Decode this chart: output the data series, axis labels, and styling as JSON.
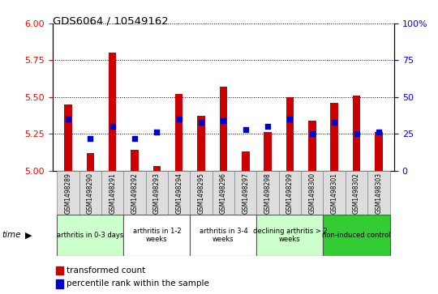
{
  "title": "GDS6064 / 10549162",
  "samples": [
    "GSM1498289",
    "GSM1498290",
    "GSM1498291",
    "GSM1498292",
    "GSM1498293",
    "GSM1498294",
    "GSM1498295",
    "GSM1498296",
    "GSM1498297",
    "GSM1498298",
    "GSM1498299",
    "GSM1498300",
    "GSM1498301",
    "GSM1498302",
    "GSM1498303"
  ],
  "red_values": [
    5.45,
    5.12,
    5.8,
    5.14,
    5.03,
    5.52,
    5.37,
    5.57,
    5.13,
    5.26,
    5.5,
    5.34,
    5.46,
    5.51,
    5.26
  ],
  "blue_values_pct": [
    35,
    22,
    30,
    22,
    26,
    35,
    33,
    34,
    28,
    30,
    35,
    25,
    33,
    25,
    26
  ],
  "ylim_left": [
    5.0,
    6.0
  ],
  "ylim_right": [
    0,
    100
  ],
  "yticks_left": [
    5.0,
    5.25,
    5.5,
    5.75,
    6.0
  ],
  "yticks_right": [
    0,
    25,
    50,
    75,
    100
  ],
  "bar_color": "#cc0000",
  "dot_color": "#0000cc",
  "bar_bottom": 5.0,
  "groups": [
    {
      "label": "arthritis in 0-3 days",
      "start": 0,
      "end": 3,
      "color": "#ccffcc"
    },
    {
      "label": "arthritis in 1-2\nweeks",
      "start": 3,
      "end": 6,
      "color": "#ffffff"
    },
    {
      "label": "arthritis in 3-4\nweeks",
      "start": 6,
      "end": 9,
      "color": "#ffffff"
    },
    {
      "label": "declining arthritis > 2\nweeks",
      "start": 9,
      "end": 12,
      "color": "#ccffcc"
    },
    {
      "label": "non-induced control",
      "start": 12,
      "end": 15,
      "color": "#33cc33"
    }
  ],
  "legend_red_label": "transformed count",
  "legend_blue_label": "percentile rank within the sample",
  "bar_width": 0.35,
  "figsize": [
    5.4,
    3.63
  ],
  "dpi": 100
}
